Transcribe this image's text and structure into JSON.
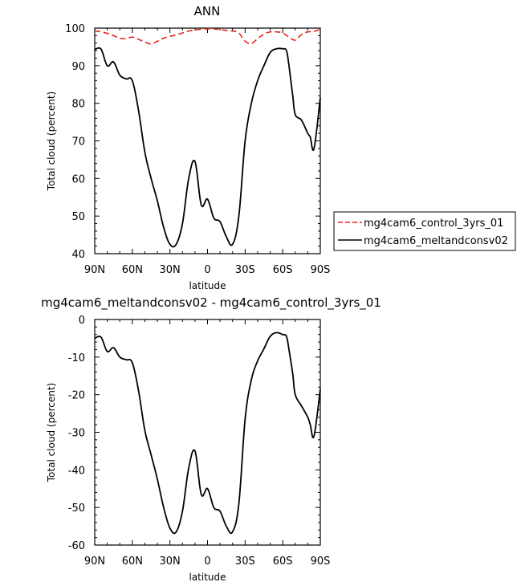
{
  "chart_data": [
    {
      "type": "line",
      "title": "ANN",
      "xlabel": "latitude",
      "ylabel": "Total cloud (percent)",
      "xlim": [
        90,
        -90
      ],
      "ylim": [
        40,
        100
      ],
      "xtick_values": [
        90,
        60,
        30,
        0,
        -30,
        -60,
        -90
      ],
      "xtick_labels": [
        "90N",
        "60N",
        "30N",
        "0",
        "30S",
        "60S",
        "90S"
      ],
      "ytick_values": [
        40,
        50,
        60,
        70,
        80,
        90,
        100
      ],
      "ytick_labels": [
        "40",
        "50",
        "60",
        "70",
        "80",
        "90",
        "100"
      ],
      "legend_position": "right",
      "series": [
        {
          "name": "mg4cam6_control_3yrs_01",
          "color": "#e8231d",
          "dash": "dashed",
          "x": [
            90,
            85,
            80,
            75,
            70,
            65,
            60,
            55,
            50,
            45,
            40,
            35,
            30,
            25,
            20,
            15,
            10,
            5,
            0,
            -5,
            -10,
            -15,
            -20,
            -25,
            -30,
            -35,
            -40,
            -45,
            -50,
            -55,
            -60,
            -65,
            -70,
            -75,
            -80,
            -85,
            -90
          ],
          "y": [
            99.3,
            99.0,
            98.6,
            98.0,
            97.3,
            97.2,
            97.6,
            97.0,
            96.3,
            95.8,
            96.5,
            97.3,
            97.8,
            98.2,
            98.7,
            99.2,
            99.5,
            99.7,
            99.8,
            99.8,
            99.6,
            99.4,
            99.2,
            98.7,
            96.5,
            95.9,
            97.2,
            98.4,
            99.0,
            99.0,
            98.7,
            97.6,
            96.8,
            98.3,
            99.0,
            99.1,
            99.8
          ]
        },
        {
          "name": "mg4cam6_meltandconsv02",
          "color": "#000000",
          "dash": "solid",
          "x": [
            90,
            85,
            80,
            75,
            70,
            65,
            60,
            55,
            50,
            45,
            40,
            35,
            30,
            25,
            20,
            15,
            10,
            5,
            0,
            -5,
            -10,
            -15,
            -20,
            -25,
            -30,
            -35,
            -40,
            -45,
            -50,
            -55,
            -60,
            -63,
            -65,
            -68,
            -70,
            -75,
            -80,
            -82,
            -85,
            -90
          ],
          "y": [
            94.3,
            94.4,
            90.0,
            91.0,
            87.5,
            86.5,
            86.0,
            78.0,
            67.0,
            60.0,
            54.0,
            47.0,
            42.5,
            42.5,
            48.0,
            60.0,
            64.5,
            53.0,
            54.5,
            49.5,
            48.5,
            44.5,
            42.5,
            50.0,
            70.0,
            80.0,
            86.0,
            90.0,
            93.5,
            94.5,
            94.5,
            94.0,
            90.0,
            82.0,
            77.0,
            75.5,
            72.0,
            71.0,
            68.0,
            81.5
          ]
        }
      ]
    },
    {
      "type": "line",
      "title": "mg4cam6_meltandconsv02 - mg4cam6_control_3yrs_01",
      "xlabel": "latitude",
      "ylabel": "Total cloud (percent)",
      "xlim": [
        90,
        -90
      ],
      "ylim": [
        -60,
        0
      ],
      "xtick_values": [
        90,
        60,
        30,
        0,
        -30,
        -60,
        -90
      ],
      "xtick_labels": [
        "90N",
        "60N",
        "30N",
        "0",
        "30S",
        "60S",
        "90S"
      ],
      "ytick_values": [
        -60,
        -50,
        -40,
        -30,
        -20,
        -10,
        0
      ],
      "ytick_labels": [
        "-60",
        "-50",
        "-40",
        "-30",
        "-20",
        "-10",
        "0"
      ],
      "series": [
        {
          "color": "#000000",
          "dash": "solid",
          "x": [
            90,
            85,
            80,
            75,
            70,
            65,
            60,
            55,
            50,
            45,
            40,
            35,
            30,
            25,
            20,
            15,
            10,
            5,
            0,
            -5,
            -10,
            -15,
            -20,
            -25,
            -30,
            -35,
            -40,
            -45,
            -50,
            -55,
            -60,
            -63,
            -65,
            -68,
            -70,
            -75,
            -80,
            -82,
            -85,
            -90
          ],
          "y": [
            -5.0,
            -4.7,
            -8.5,
            -7.5,
            -10.0,
            -10.7,
            -11.5,
            -19.0,
            -29.5,
            -36.0,
            -42.5,
            -50.0,
            -55.5,
            -56.5,
            -51.0,
            -39.5,
            -35.0,
            -46.5,
            -45.0,
            -50.0,
            -51.0,
            -55.0,
            -56.5,
            -49.0,
            -26.5,
            -16.0,
            -11.0,
            -7.8,
            -4.5,
            -3.5,
            -4.0,
            -4.5,
            -8.0,
            -14.5,
            -20.0,
            -23.0,
            -26.0,
            -28.0,
            -31.0,
            -18.5
          ]
        }
      ]
    }
  ]
}
